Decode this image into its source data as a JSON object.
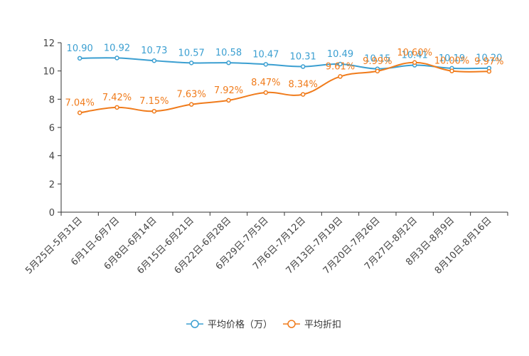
{
  "chart_data": {
    "type": "line",
    "categories": [
      "5月25日-5月31日",
      "6月1日-6月7日",
      "6月8日-6月14日",
      "6月15日-6月21日",
      "6月22日-6月28日",
      "6月29日-7月5日",
      "7月6日-7月12日",
      "7月13日-7月19日",
      "7月20日-7月26日",
      "7月27日-8月2日",
      "8月3日-8月9日",
      "8月10日-8月16日"
    ],
    "ylim": [
      0,
      12
    ],
    "yticks": [
      "0",
      "2",
      "4",
      "6",
      "8",
      "10",
      "12"
    ],
    "series": [
      {
        "name": "平均价格（万）",
        "color": "#3b9fd1",
        "values": [
          10.9,
          10.92,
          10.73,
          10.57,
          10.58,
          10.47,
          10.31,
          10.49,
          10.15,
          10.41,
          10.19,
          10.2
        ],
        "labels": [
          "10.90",
          "10.92",
          "10.73",
          "10.57",
          "10.58",
          "10.47",
          "10.31",
          "10.49",
          "10.15",
          "10.41",
          "10.19",
          "10.20"
        ]
      },
      {
        "name": "平均折扣",
        "color": "#f07b1b",
        "values": [
          7.04,
          7.42,
          7.15,
          7.63,
          7.92,
          8.47,
          8.34,
          9.61,
          9.99,
          10.6,
          10.0,
          9.97
        ],
        "labels": [
          "7.04%",
          "7.42%",
          "7.15%",
          "7.63%",
          "7.92%",
          "8.47%",
          "8.34%",
          "9.61%",
          "9.99%",
          "10.60%",
          "10.00%",
          "9.97%"
        ]
      }
    ]
  }
}
